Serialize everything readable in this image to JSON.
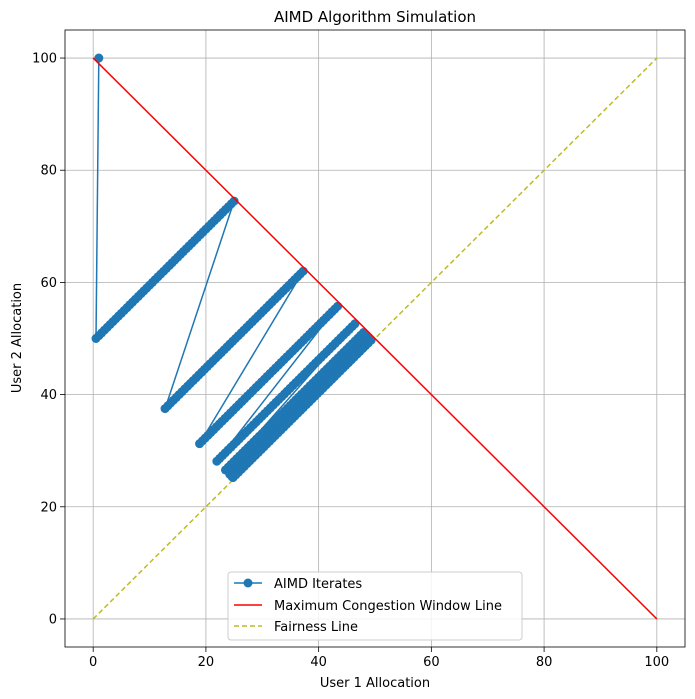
{
  "chart_data": {
    "type": "line",
    "title": "AIMD Algorithm Simulation",
    "xlabel": "User 1 Allocation",
    "ylabel": "User 2 Allocation",
    "xlim": [
      -5,
      105
    ],
    "ylim": [
      -5,
      105
    ],
    "xticks": [
      0,
      20,
      40,
      60,
      80,
      100
    ],
    "yticks": [
      0,
      20,
      40,
      60,
      80,
      100
    ],
    "xtick_labels": [
      "0",
      "20",
      "40",
      "60",
      "80",
      "100"
    ],
    "ytick_labels": [
      "0",
      "20",
      "40",
      "60",
      "80",
      "100"
    ],
    "grid": true,
    "legend_position": "bottom-center",
    "series": [
      {
        "name": "AIMD Iterates",
        "style": "line-with-markers",
        "color": "#1f77b4",
        "segments": [
          {
            "start": [
              1,
              100
            ],
            "steps": 0
          },
          {
            "start": [
              0.5,
              50
            ],
            "steps": 49
          },
          {
            "start": [
              12.75,
              37.5
            ],
            "steps": 49
          },
          {
            "start": [
              18.875,
              31.25
            ],
            "steps": 49
          },
          {
            "start": [
              21.9375,
              28.125
            ],
            "steps": 49
          },
          {
            "start": [
              23.46875,
              26.5625
            ],
            "steps": 49
          },
          {
            "start": [
              24.234375,
              25.78125
            ],
            "steps": 49
          },
          {
            "start": [
              24.6171875,
              25.390625
            ],
            "steps": 49
          },
          {
            "start": [
              24.80859375,
              25.1953125
            ],
            "steps": 49
          }
        ]
      },
      {
        "name": "Maximum Congestion Window Line",
        "style": "solid",
        "color": "#ff0000",
        "x": [
          0,
          100
        ],
        "y": [
          100,
          0
        ]
      },
      {
        "name": "Fairness Line",
        "style": "dashed",
        "color": "#bcbd22",
        "x": [
          0,
          100
        ],
        "y": [
          0,
          100
        ]
      }
    ]
  }
}
